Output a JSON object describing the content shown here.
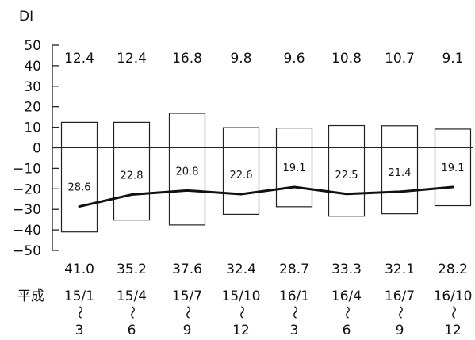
{
  "chart_data": {
    "type": "bar",
    "title": "",
    "ylabel": "DI",
    "xlabel": "",
    "ylim": [
      -50,
      50
    ],
    "yticks": [
      50,
      40,
      30,
      20,
      10,
      0,
      -10,
      -20,
      -30,
      -40,
      -50
    ],
    "ytick_labels": [
      "50",
      "40",
      "30",
      "20",
      "10",
      "0",
      "−10",
      "−20",
      "−30",
      "−40",
      "−50"
    ],
    "era_label": "平成",
    "periods": [
      {
        "start": "15/1",
        "tilde": "〜",
        "end": "3"
      },
      {
        "start": "15/4",
        "tilde": "〜",
        "end": "6"
      },
      {
        "start": "15/7",
        "tilde": "〜",
        "end": "9"
      },
      {
        "start": "15/10",
        "tilde": "〜",
        "end": "12"
      },
      {
        "start": "16/1",
        "tilde": "〜",
        "end": "3"
      },
      {
        "start": "16/4",
        "tilde": "〜",
        "end": "6"
      },
      {
        "start": "16/7",
        "tilde": "〜",
        "end": "9"
      },
      {
        "start": "16/10",
        "tilde": "〜",
        "end": "12"
      }
    ],
    "upper_values": [
      12.4,
      12.4,
      16.8,
      9.8,
      9.6,
      10.8,
      10.7,
      9.1
    ],
    "upper_labels": [
      "12.4",
      "12.4",
      "16.8",
      "9.8",
      "9.6",
      "10.8",
      "10.7",
      "9.1"
    ],
    "lower_values": [
      -41.0,
      -35.2,
      -37.6,
      -32.4,
      -28.7,
      -33.3,
      -32.1,
      -28.2
    ],
    "lower_labels": [
      "41.0",
      "35.2",
      "37.6",
      "32.4",
      "28.7",
      "33.3",
      "32.1",
      "28.2"
    ],
    "line_values": [
      -28.6,
      -22.8,
      -20.8,
      -22.6,
      -19.1,
      -22.5,
      -21.4,
      -19.1
    ],
    "line_labels": [
      "28.6",
      "22.8",
      "20.8",
      "22.6",
      "19.1",
      "22.5",
      "21.4",
      "19.1"
    ],
    "colors": {
      "bar_fill": "#ffffff",
      "bar_stroke": "#222222",
      "line": "#111111",
      "axis": "#222222"
    }
  }
}
